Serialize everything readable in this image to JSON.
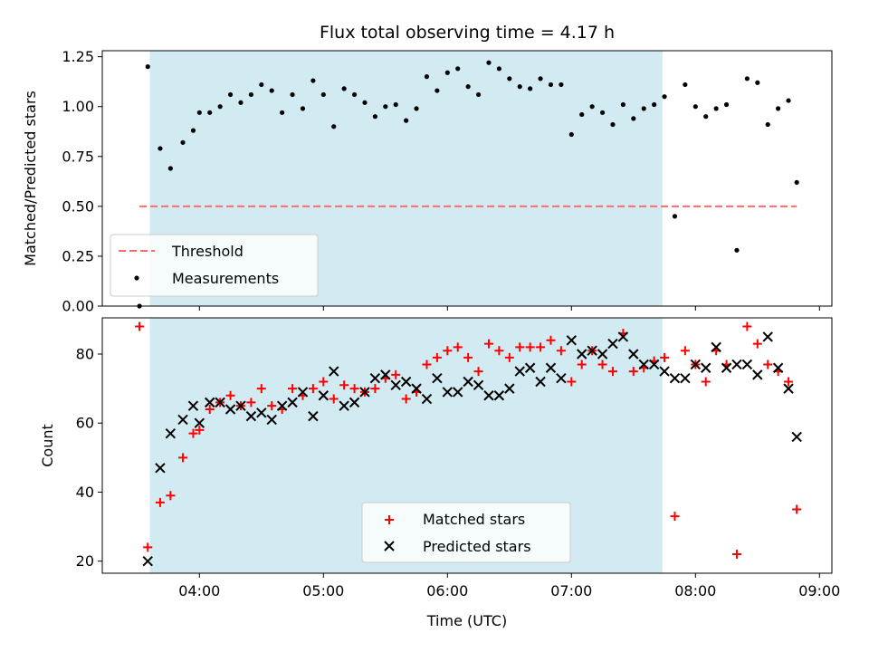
{
  "chart_data": [
    {
      "type": "scatter",
      "title": "Flux total observing time = 4.17 h",
      "xlabel": "",
      "ylabel": "Matched/Predicted stars",
      "ylim": [
        0,
        1.28
      ],
      "yticks": [
        "0.00",
        "0.25",
        "0.50",
        "0.75",
        "1.00",
        "1.25"
      ],
      "ytick_values": [
        0,
        0.25,
        0.5,
        0.75,
        1.0,
        1.25
      ],
      "shaded_region": {
        "from": "03:36",
        "to": "07:44",
        "color": "#add8e6"
      },
      "threshold": {
        "name": "Threshold",
        "value": 0.5,
        "from": "03:31",
        "to": "08:49",
        "color": "#ff6b6b"
      },
      "legend": {
        "placement": "lower left",
        "entries": [
          "Threshold",
          "Measurements"
        ]
      },
      "series": [
        {
          "name": "Measurements",
          "marker": "dot",
          "color": "#000000",
          "points": [
            [
              "03:31",
              0.0
            ],
            [
              "03:35",
              1.2
            ],
            [
              "03:41",
              0.79
            ],
            [
              "03:46",
              0.69
            ],
            [
              "03:52",
              0.82
            ],
            [
              "03:57",
              0.88
            ],
            [
              "04:00",
              0.97
            ],
            [
              "04:05",
              0.97
            ],
            [
              "04:10",
              1.0
            ],
            [
              "04:15",
              1.06
            ],
            [
              "04:20",
              1.02
            ],
            [
              "04:25",
              1.06
            ],
            [
              "04:30",
              1.11
            ],
            [
              "04:35",
              1.08
            ],
            [
              "04:40",
              0.97
            ],
            [
              "04:45",
              1.06
            ],
            [
              "04:50",
              0.99
            ],
            [
              "04:55",
              1.13
            ],
            [
              "05:00",
              1.06
            ],
            [
              "05:05",
              0.9
            ],
            [
              "05:10",
              1.09
            ],
            [
              "05:15",
              1.06
            ],
            [
              "05:20",
              1.02
            ],
            [
              "05:25",
              0.95
            ],
            [
              "05:30",
              1.0
            ],
            [
              "05:35",
              1.01
            ],
            [
              "05:40",
              0.93
            ],
            [
              "05:45",
              0.99
            ],
            [
              "05:50",
              1.15
            ],
            [
              "05:55",
              1.08
            ],
            [
              "06:00",
              1.17
            ],
            [
              "06:05",
              1.19
            ],
            [
              "06:10",
              1.1
            ],
            [
              "06:15",
              1.06
            ],
            [
              "06:20",
              1.22
            ],
            [
              "06:25",
              1.19
            ],
            [
              "06:30",
              1.14
            ],
            [
              "06:35",
              1.1
            ],
            [
              "06:40",
              1.09
            ],
            [
              "06:45",
              1.14
            ],
            [
              "06:50",
              1.11
            ],
            [
              "06:55",
              1.11
            ],
            [
              "07:00",
              0.86
            ],
            [
              "07:05",
              0.96
            ],
            [
              "07:10",
              1.0
            ],
            [
              "07:15",
              0.97
            ],
            [
              "07:20",
              0.91
            ],
            [
              "07:25",
              1.01
            ],
            [
              "07:30",
              0.94
            ],
            [
              "07:35",
              0.99
            ],
            [
              "07:40",
              1.01
            ],
            [
              "07:45",
              1.05
            ],
            [
              "07:50",
              0.45
            ],
            [
              "07:55",
              1.11
            ],
            [
              "08:00",
              1.0
            ],
            [
              "08:05",
              0.95
            ],
            [
              "08:10",
              0.99
            ],
            [
              "08:15",
              1.01
            ],
            [
              "08:20",
              0.28
            ],
            [
              "08:25",
              1.14
            ],
            [
              "08:30",
              1.12
            ],
            [
              "08:35",
              0.91
            ],
            [
              "08:40",
              0.99
            ],
            [
              "08:45",
              1.03
            ],
            [
              "08:49",
              0.62
            ]
          ]
        }
      ]
    },
    {
      "type": "scatter",
      "title": "",
      "xlabel": "Time (UTC)",
      "ylabel": "Count",
      "ylim": [
        16.5,
        90.5
      ],
      "xlim": [
        "03:13",
        "09:06"
      ],
      "xticks": [
        "04:00",
        "05:00",
        "06:00",
        "07:00",
        "08:00",
        "09:00"
      ],
      "yticks": [
        "20",
        "40",
        "60",
        "80"
      ],
      "ytick_values": [
        20,
        40,
        60,
        80
      ],
      "shaded_region": {
        "from": "03:36",
        "to": "07:44",
        "color": "#add8e6"
      },
      "legend": {
        "placement": "lower center",
        "entries": [
          "Matched stars",
          "Predicted stars"
        ]
      },
      "series": [
        {
          "name": "Matched stars",
          "marker": "plus",
          "color": "#ff0000",
          "points": [
            [
              "03:31",
              88
            ],
            [
              "03:35",
              24
            ],
            [
              "03:41",
              37
            ],
            [
              "03:46",
              39
            ],
            [
              "03:52",
              50
            ],
            [
              "03:57",
              57
            ],
            [
              "04:00",
              58
            ],
            [
              "04:05",
              64
            ],
            [
              "04:10",
              66
            ],
            [
              "04:15",
              68
            ],
            [
              "04:20",
              65
            ],
            [
              "04:25",
              66
            ],
            [
              "04:30",
              70
            ],
            [
              "04:35",
              65
            ],
            [
              "04:40",
              64
            ],
            [
              "04:45",
              70
            ],
            [
              "04:50",
              68
            ],
            [
              "04:55",
              70
            ],
            [
              "05:00",
              72
            ],
            [
              "05:05",
              67
            ],
            [
              "05:10",
              71
            ],
            [
              "05:15",
              70
            ],
            [
              "05:20",
              69
            ],
            [
              "05:25",
              70
            ],
            [
              "05:30",
              73
            ],
            [
              "05:35",
              74
            ],
            [
              "05:40",
              67
            ],
            [
              "05:45",
              69
            ],
            [
              "05:50",
              77
            ],
            [
              "05:55",
              79
            ],
            [
              "06:00",
              81
            ],
            [
              "06:05",
              82
            ],
            [
              "06:10",
              79
            ],
            [
              "06:15",
              75
            ],
            [
              "06:20",
              83
            ],
            [
              "06:25",
              81
            ],
            [
              "06:30",
              79
            ],
            [
              "06:35",
              82
            ],
            [
              "06:40",
              82
            ],
            [
              "06:45",
              82
            ],
            [
              "06:50",
              84
            ],
            [
              "06:55",
              81
            ],
            [
              "07:00",
              72
            ],
            [
              "07:05",
              77
            ],
            [
              "07:10",
              81
            ],
            [
              "07:15",
              77
            ],
            [
              "07:20",
              75
            ],
            [
              "07:25",
              86
            ],
            [
              "07:30",
              75
            ],
            [
              "07:35",
              76
            ],
            [
              "07:40",
              78
            ],
            [
              "07:45",
              79
            ],
            [
              "07:50",
              33
            ],
            [
              "07:55",
              81
            ],
            [
              "08:00",
              77
            ],
            [
              "08:05",
              72
            ],
            [
              "08:10",
              81
            ],
            [
              "08:15",
              77
            ],
            [
              "08:20",
              22
            ],
            [
              "08:25",
              88
            ],
            [
              "08:30",
              83
            ],
            [
              "08:35",
              77
            ],
            [
              "08:40",
              75
            ],
            [
              "08:45",
              72
            ],
            [
              "08:49",
              35
            ]
          ]
        },
        {
          "name": "Predicted stars",
          "marker": "x",
          "color": "#000000",
          "points": [
            [
              "03:35",
              20
            ],
            [
              "03:41",
              47
            ],
            [
              "03:46",
              57
            ],
            [
              "03:52",
              61
            ],
            [
              "03:57",
              65
            ],
            [
              "04:00",
              60
            ],
            [
              "04:05",
              66
            ],
            [
              "04:10",
              66
            ],
            [
              "04:15",
              64
            ],
            [
              "04:20",
              65
            ],
            [
              "04:25",
              62
            ],
            [
              "04:30",
              63
            ],
            [
              "04:35",
              61
            ],
            [
              "04:40",
              65
            ],
            [
              "04:45",
              66
            ],
            [
              "04:50",
              69
            ],
            [
              "04:55",
              62
            ],
            [
              "05:00",
              68
            ],
            [
              "05:05",
              75
            ],
            [
              "05:10",
              65
            ],
            [
              "05:15",
              66
            ],
            [
              "05:20",
              69
            ],
            [
              "05:25",
              73
            ],
            [
              "05:30",
              74
            ],
            [
              "05:35",
              71
            ],
            [
              "05:40",
              72
            ],
            [
              "05:45",
              70
            ],
            [
              "05:50",
              67
            ],
            [
              "05:55",
              73
            ],
            [
              "06:00",
              69
            ],
            [
              "06:05",
              69
            ],
            [
              "06:10",
              72
            ],
            [
              "06:15",
              71
            ],
            [
              "06:20",
              68
            ],
            [
              "06:25",
              68
            ],
            [
              "06:30",
              70
            ],
            [
              "06:35",
              75
            ],
            [
              "06:40",
              76
            ],
            [
              "06:45",
              72
            ],
            [
              "06:50",
              76
            ],
            [
              "06:55",
              73
            ],
            [
              "07:00",
              84
            ],
            [
              "07:05",
              80
            ],
            [
              "07:10",
              81
            ],
            [
              "07:15",
              80
            ],
            [
              "07:20",
              83
            ],
            [
              "07:25",
              85
            ],
            [
              "07:30",
              80
            ],
            [
              "07:35",
              77
            ],
            [
              "07:40",
              77
            ],
            [
              "07:45",
              75
            ],
            [
              "07:50",
              73
            ],
            [
              "07:55",
              73
            ],
            [
              "08:00",
              77
            ],
            [
              "08:05",
              76
            ],
            [
              "08:10",
              82
            ],
            [
              "08:15",
              76
            ],
            [
              "08:20",
              77
            ],
            [
              "08:25",
              77
            ],
            [
              "08:30",
              74
            ],
            [
              "08:35",
              85
            ],
            [
              "08:40",
              76
            ],
            [
              "08:45",
              70
            ],
            [
              "08:49",
              56
            ]
          ]
        }
      ]
    }
  ]
}
